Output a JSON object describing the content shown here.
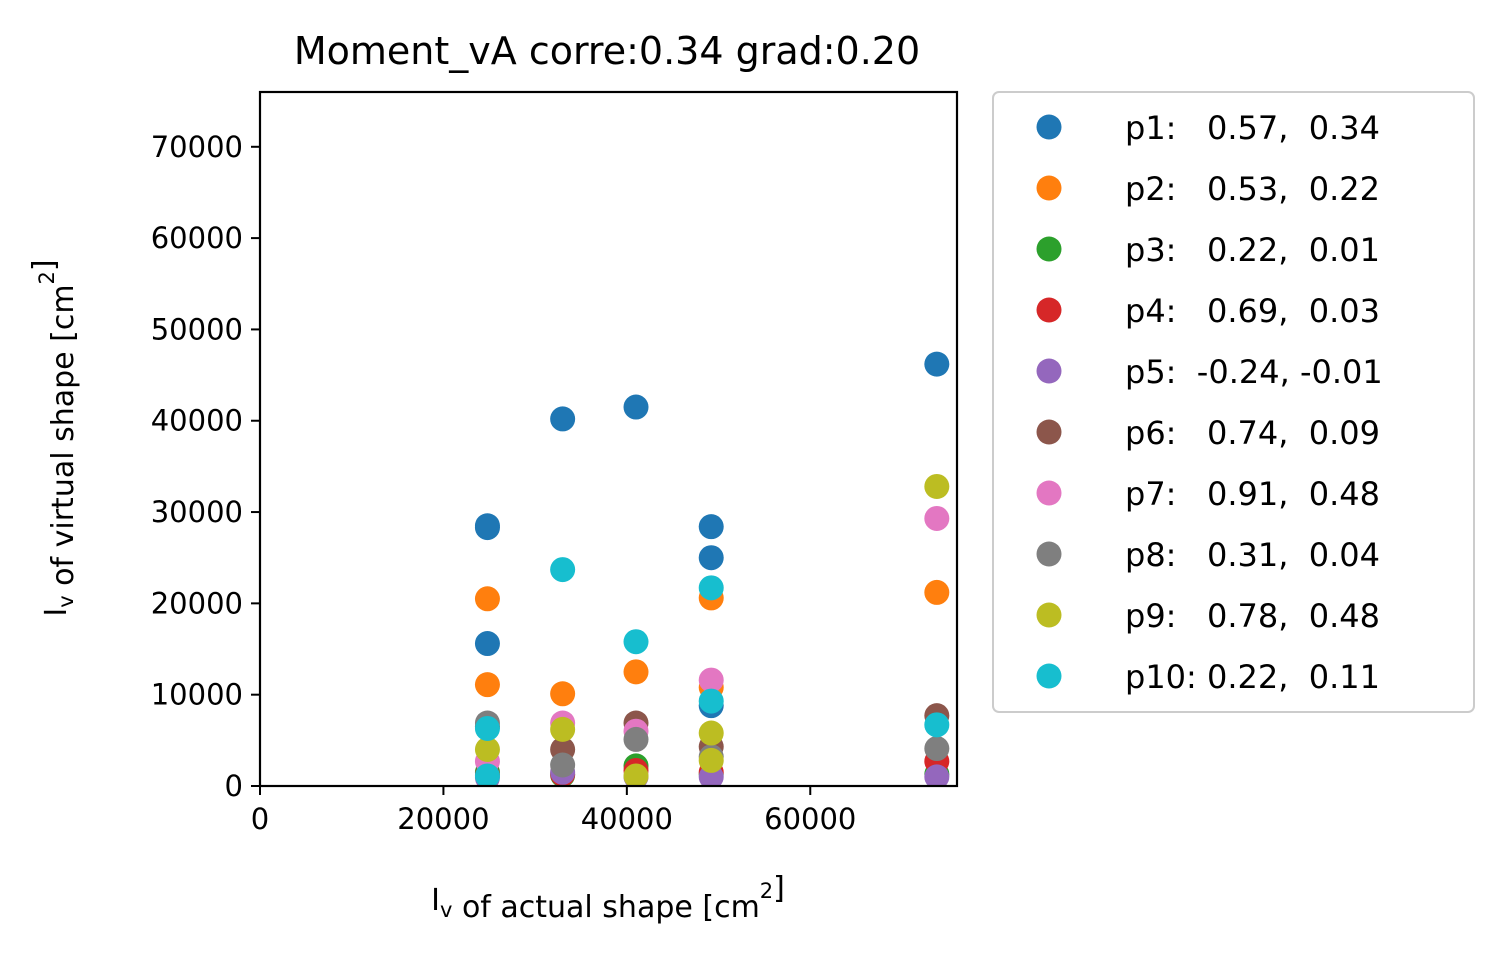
{
  "chart_data": {
    "type": "scatter",
    "title": "Moment_vA corre:0.34 grad:0.20",
    "xlabel": {
      "main": "I",
      "sub": "v",
      "rest": " of actual shape [cm",
      "sup": "2",
      "end": "]"
    },
    "ylabel": {
      "main": "I",
      "sub": "v",
      "rest": " of virtual shape [cm",
      "sup": "2",
      "end": "]"
    },
    "xlim": [
      0,
      76000
    ],
    "ylim": [
      0,
      76000
    ],
    "xticks": [
      0,
      20000,
      40000,
      60000
    ],
    "yticks": [
      0,
      10000,
      20000,
      30000,
      40000,
      50000,
      60000,
      70000
    ],
    "legend_position": "outside-right",
    "grid": false,
    "series": [
      {
        "name": "p1:   0.57,  0.34",
        "color": "#1f77b4",
        "points": [
          [
            24800,
            28300
          ],
          [
            24800,
            28500
          ],
          [
            24800,
            15600
          ],
          [
            33000,
            40200
          ],
          [
            41000,
            41500
          ],
          [
            49200,
            28400
          ],
          [
            49200,
            25000
          ],
          [
            49200,
            8800
          ],
          [
            73800,
            46200
          ]
        ]
      },
      {
        "name": "p2:   0.53,  0.22",
        "color": "#ff7f0e",
        "points": [
          [
            24800,
            20500
          ],
          [
            24800,
            11100
          ],
          [
            33000,
            10100
          ],
          [
            41000,
            12500
          ],
          [
            49200,
            20600
          ],
          [
            49200,
            10800
          ],
          [
            73800,
            21200
          ]
        ]
      },
      {
        "name": "p3:   0.22,  0.01",
        "color": "#2ca02c",
        "points": [
          [
            24800,
            1500
          ],
          [
            33000,
            1200
          ],
          [
            41000,
            2200
          ],
          [
            49200,
            1300
          ],
          [
            73800,
            1300
          ]
        ]
      },
      {
        "name": "p4:   0.69,  0.03",
        "color": "#d62728",
        "points": [
          [
            24800,
            1200
          ],
          [
            33000,
            1300
          ],
          [
            41000,
            1700
          ],
          [
            49200,
            1500
          ],
          [
            73800,
            2700
          ]
        ]
      },
      {
        "name": "p5:  -0.24, -0.01",
        "color": "#9467bd",
        "points": [
          [
            24800,
            900
          ],
          [
            33000,
            1500
          ],
          [
            41000,
            1000
          ],
          [
            49200,
            1000
          ],
          [
            73800,
            1000
          ]
        ]
      },
      {
        "name": "p6:   0.74,  0.09",
        "color": "#8c564b",
        "points": [
          [
            24800,
            6500
          ],
          [
            33000,
            4000
          ],
          [
            41000,
            6900
          ],
          [
            49200,
            4300
          ],
          [
            73800,
            7700
          ]
        ]
      },
      {
        "name": "p7:   0.91,  0.48",
        "color": "#e377c2",
        "points": [
          [
            24800,
            2700
          ],
          [
            33000,
            6900
          ],
          [
            41000,
            6000
          ],
          [
            49200,
            11600
          ],
          [
            73800,
            29300
          ]
        ]
      },
      {
        "name": "p8:   0.31,  0.04",
        "color": "#7f7f7f",
        "points": [
          [
            24800,
            6900
          ],
          [
            33000,
            2300
          ],
          [
            41000,
            5100
          ],
          [
            49200,
            3200
          ],
          [
            73800,
            4100
          ]
        ]
      },
      {
        "name": "p9:   0.78,  0.48",
        "color": "#bcbd22",
        "points": [
          [
            24800,
            4000
          ],
          [
            33000,
            6200
          ],
          [
            41000,
            1100
          ],
          [
            49200,
            5800
          ],
          [
            49200,
            2800
          ],
          [
            73800,
            32800
          ]
        ]
      },
      {
        "name": "p10: 0.22,  0.11",
        "color": "#17becf",
        "points": [
          [
            24800,
            6300
          ],
          [
            24800,
            1100
          ],
          [
            33000,
            23700
          ],
          [
            41000,
            15800
          ],
          [
            49200,
            21700
          ],
          [
            49200,
            9300
          ],
          [
            73800,
            6700
          ]
        ]
      }
    ]
  }
}
